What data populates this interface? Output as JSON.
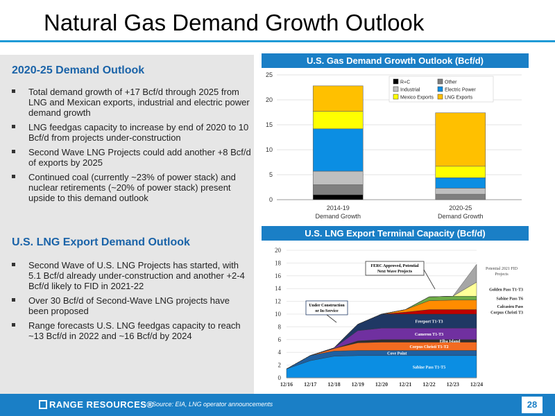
{
  "slide": {
    "title": "Natural Gas Demand Growth Outlook"
  },
  "left": {
    "section1": {
      "heading": "2020-25 Demand Outlook",
      "bullets": [
        "Total demand growth of +17 Bcf/d through 2025 from LNG and Mexican exports, industrial and electric power demand growth",
        "LNG feedgas capacity to increase by end of 2020 to 10 Bcf/d from projects under-construction",
        "Second Wave LNG Projects could add another +8 Bcf/d of exports by 2025",
        "Continued coal (currently ~23% of power stack) and nuclear retirements (~20% of power stack) present upside to this demand outlook"
      ]
    },
    "section2": {
      "heading": "U.S. LNG Export Demand Outlook",
      "bullets": [
        "Second Wave of U.S. LNG Projects has started, with 5.1 Bcf/d already under-construction and another +2-4 Bcf/d likely to FID in 2021-22",
        "Over 30 Bcf/d of Second-Wave LNG projects have been proposed",
        "Range forecasts U.S. LNG feedgas capacity to reach ~13 Bcf/d in 2022 and ~16 Bcf/d by 2024"
      ]
    }
  },
  "chart_headers": {
    "top": "U.S. Gas Demand Growth Outlook (Bcf/d)",
    "bottom": "U.S. LNG Export Terminal Capacity (Bcf/d)"
  },
  "chart_data": [
    {
      "type": "bar",
      "stacked": true,
      "categories": [
        "2014-19\nDemand Growth",
        "2020-25\nDemand Growth"
      ],
      "series": [
        {
          "name": "R+C",
          "color": "#000000",
          "values": [
            1.0,
            0.0
          ]
        },
        {
          "name": "Other",
          "color": "#7f7f7f",
          "values": [
            2.0,
            1.1
          ]
        },
        {
          "name": "Industrial",
          "color": "#bfbfbf",
          "values": [
            2.7,
            1.2
          ]
        },
        {
          "name": "Electric Power",
          "color": "#0b8ee3",
          "values": [
            8.5,
            2.1
          ]
        },
        {
          "name": "Mexico Exports",
          "color": "#ffff00",
          "values": [
            3.5,
            2.3
          ]
        },
        {
          "name": "LNG Exports",
          "color": "#ffc000",
          "values": [
            5.1,
            10.7
          ]
        }
      ],
      "ylim": [
        0,
        25
      ],
      "yticks": [
        0,
        5,
        10,
        15,
        20,
        25
      ],
      "legend": "top-right"
    },
    {
      "type": "area",
      "stacked": true,
      "x": [
        "12/16",
        "12/17",
        "12/18",
        "12/19",
        "12/20",
        "12/21",
        "12/22",
        "12/23",
        "12/24"
      ],
      "series": [
        {
          "name": "Sabine Pass T1-T5",
          "color": "#0b8ee3",
          "values": [
            1.4,
            2.7,
            3.4,
            3.5,
            3.5,
            3.5,
            3.5,
            3.5,
            3.5
          ]
        },
        {
          "name": "Cove Point",
          "color": "#1f5fa0",
          "values": [
            0.0,
            0.8,
            0.8,
            0.8,
            0.8,
            0.8,
            0.8,
            0.8,
            0.8
          ]
        },
        {
          "name": "Corpus Christi T1-T2",
          "color": "#f26b21",
          "values": [
            0.0,
            0.0,
            0.4,
            1.2,
            1.3,
            1.3,
            1.3,
            1.3,
            1.3
          ]
        },
        {
          "name": "Elba Island",
          "color": "#2f2f2f",
          "values": [
            0.0,
            0.0,
            0.0,
            0.3,
            0.4,
            0.4,
            0.4,
            0.4,
            0.4
          ]
        },
        {
          "name": "Cameron T1-T3",
          "color": "#7030a0",
          "values": [
            0.0,
            0.0,
            0.1,
            1.6,
            1.8,
            1.8,
            1.8,
            1.8,
            1.8
          ]
        },
        {
          "name": "Freeport T1-T3",
          "color": "#1f3864",
          "values": [
            0.0,
            0.0,
            0.0,
            1.0,
            2.2,
            2.2,
            2.2,
            2.2,
            2.2
          ]
        },
        {
          "name": "Corpus Christi T3",
          "color": "#c00000",
          "values": [
            0.0,
            0.0,
            0.0,
            0.0,
            0.0,
            0.3,
            0.7,
            0.7,
            0.7
          ]
        },
        {
          "name": "Calcasieu Pass",
          "color": "#ff8c00",
          "values": [
            0.0,
            0.0,
            0.0,
            0.0,
            0.0,
            0.4,
            1.4,
            1.5,
            1.5
          ]
        },
        {
          "name": "Sabine Pass T6",
          "color": "#70ad47",
          "values": [
            0.0,
            0.0,
            0.0,
            0.0,
            0.0,
            0.0,
            0.6,
            0.6,
            0.6
          ]
        },
        {
          "name": "Golden Pass T1-T3",
          "color": "#ffff99",
          "values": [
            0.0,
            0.0,
            0.0,
            0.0,
            0.0,
            0.0,
            0.0,
            0.0,
            2.2
          ]
        },
        {
          "name": "Potential 2021 FID Projects",
          "color": "#a6a6a6",
          "values": [
            0.0,
            0.0,
            0.0,
            0.0,
            0.0,
            0.0,
            0.0,
            0.0,
            2.8
          ]
        }
      ],
      "ylim": [
        0,
        20
      ],
      "yticks": [
        0,
        2,
        4,
        6,
        8,
        10,
        12,
        14,
        16,
        18,
        20
      ],
      "annotations": [
        "Under Construction or In-Service",
        "FERC Approved, Potential Next Wave Projects"
      ]
    }
  ],
  "footer": {
    "logo": "RANGE RESOURCES®",
    "source": "Source: EIA, LNG operator announcements",
    "page": "28"
  }
}
